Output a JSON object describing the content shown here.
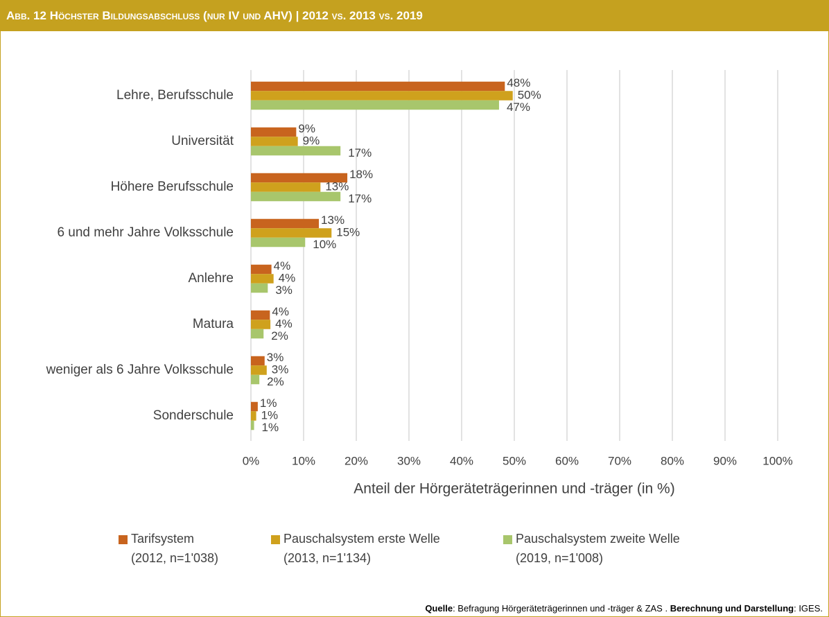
{
  "chart_data": {
    "type": "hbar",
    "title": "Abb. 12  Höchster Bildungsabschluss (nur IV und AHV) | 2012 vs. 2013 vs. 2019",
    "categories": [
      "Lehre, Berufsschule",
      "Universität",
      "Höhere Berufsschule",
      "6 und mehr Jahre Volksschule",
      "Anlehre",
      "Matura",
      "weniger als 6 Jahre Volksschule",
      "Sonderschule"
    ],
    "series": [
      {
        "name": "Tarifsystem\n(2012, n=1'038)",
        "color": "#c8641e",
        "values": [
          48.2,
          8.6,
          18.3,
          12.9,
          3.9,
          3.6,
          2.6,
          1.3
        ],
        "value_labels": [
          "48%",
          "9%",
          "18%",
          "13%",
          "4%",
          "4%",
          "3%",
          "1%"
        ]
      },
      {
        "name": "Pauschalsystem erste Welle\n(2013, n=1'134)",
        "color": "#cfa11d",
        "values": [
          49.7,
          8.9,
          13.2,
          15.3,
          4.3,
          3.7,
          3.0,
          1.0
        ],
        "value_labels": [
          "50%",
          "9%",
          "13%",
          "15%",
          "4%",
          "4%",
          "3%",
          "1%"
        ]
      },
      {
        "name": "Pauschalsystem zweite Welle\n(2019, n=1'008)",
        "color": "#a8c66c",
        "values": [
          47.1,
          17.0,
          17.0,
          10.3,
          3.2,
          2.4,
          1.6,
          0.6
        ],
        "value_labels": [
          "47%",
          "17%",
          "17%",
          "10%",
          "3%",
          "2%",
          "2%",
          "1%"
        ]
      }
    ],
    "xlim": [
      0,
      100
    ],
    "xticks": [
      {
        "value": 0,
        "label": "0%"
      },
      {
        "value": 10,
        "label": "10%"
      },
      {
        "value": 20,
        "label": "20%"
      },
      {
        "value": 30,
        "label": "30%"
      },
      {
        "value": 40,
        "label": "40%"
      },
      {
        "value": 50,
        "label": "50%"
      },
      {
        "value": 60,
        "label": "60%"
      },
      {
        "value": 70,
        "label": "70%"
      },
      {
        "value": 80,
        "label": "80%"
      },
      {
        "value": 90,
        "label": "90%"
      },
      {
        "value": 100,
        "label": "100%"
      }
    ],
    "xlabel": "Anteil der Hörgeräteträgerinnen und -träger (in %)",
    "grid": true,
    "source": [
      "Quelle",
      ": Befragung Hörgeräteträgerinnen und -träger & ZAS . ",
      "Berechnung und Darstellung",
      ": IGES."
    ]
  }
}
